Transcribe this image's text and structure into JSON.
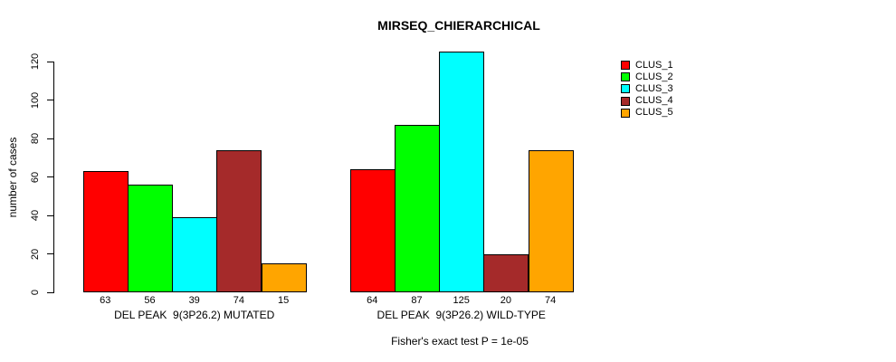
{
  "chart_data": {
    "type": "bar",
    "title": "MIRSEQ_CHIERARCHICAL",
    "ylabel": "number of cases",
    "xlabel": "",
    "ylim": [
      0,
      120
    ],
    "yticks": [
      0,
      20,
      40,
      60,
      80,
      100,
      120
    ],
    "grid": false,
    "legend_position": "top-right-outside",
    "legend": [
      {
        "label": "CLUS_1",
        "color": "#ff0000"
      },
      {
        "label": "CLUS_2",
        "color": "#00ff00"
      },
      {
        "label": "CLUS_3",
        "color": "#00ffff"
      },
      {
        "label": "CLUS_4",
        "color": "#a52a2a"
      },
      {
        "label": "CLUS_5",
        "color": "#ffa500"
      }
    ],
    "categories": [
      "DEL PEAK  9(3P26.2) MUTATED",
      "DEL PEAK  9(3P26.2) WILD-TYPE"
    ],
    "series": [
      {
        "name": "CLUS_1",
        "values": [
          63,
          64
        ]
      },
      {
        "name": "CLUS_2",
        "values": [
          56,
          87
        ]
      },
      {
        "name": "CLUS_3",
        "values": [
          39,
          125
        ]
      },
      {
        "name": "CLUS_4",
        "values": [
          74,
          20
        ]
      },
      {
        "name": "CLUS_5",
        "values": [
          15,
          74
        ]
      }
    ],
    "bar_value_labels": [
      [
        63,
        56,
        39,
        74,
        15
      ],
      [
        64,
        87,
        125,
        20,
        74
      ]
    ],
    "footnote": "Fisher's exact test P = 1e-05",
    "background": "#ffffff",
    "text_color": "#000000"
  }
}
